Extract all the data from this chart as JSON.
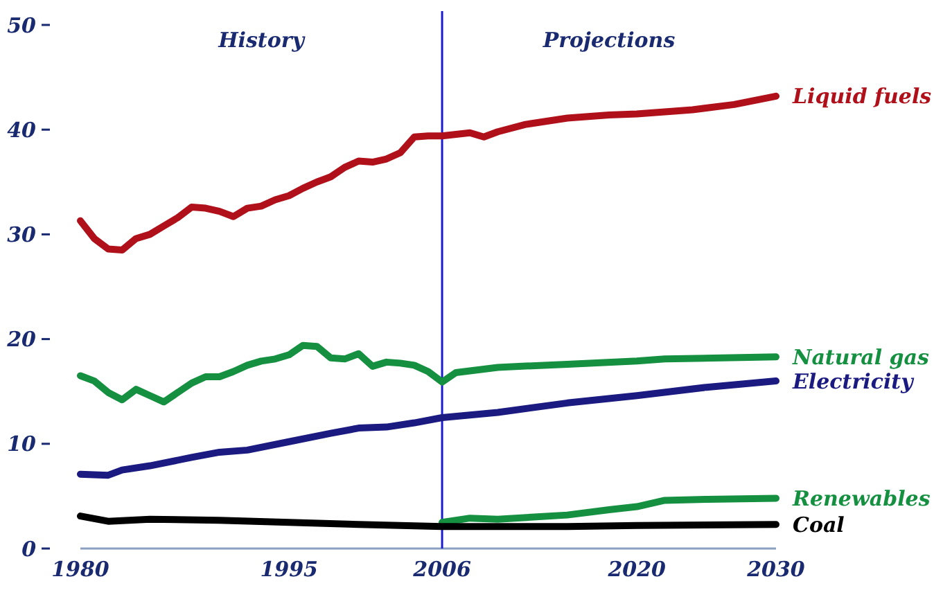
{
  "chart_data": {
    "type": "line",
    "xlim": [
      1980,
      2030
    ],
    "ylim": [
      0,
      50
    ],
    "xticks": [
      1980,
      1995,
      2006,
      2020,
      2030
    ],
    "yticks": [
      0,
      10,
      20,
      30,
      40,
      50
    ],
    "grid": false,
    "marker": "none",
    "line_style": "solid",
    "annotations": [
      "History",
      "Projections"
    ],
    "ref_lines": [
      {
        "axis": "x",
        "value": 2006,
        "color": "#1a1ad0"
      }
    ],
    "series": [
      {
        "name": "Liquid fuels",
        "color": "#b0101a",
        "x": [
          1980,
          1981,
          1982,
          1983,
          1984,
          1985,
          1986,
          1987,
          1988,
          1989,
          1990,
          1991,
          1992,
          1993,
          1994,
          1995,
          1996,
          1997,
          1998,
          1999,
          2000,
          2001,
          2002,
          2003,
          2004,
          2005,
          2006,
          2008,
          2009,
          2010,
          2012,
          2015,
          2018,
          2020,
          2024,
          2027,
          2030
        ],
        "values": [
          31.3,
          29.6,
          28.6,
          28.5,
          29.6,
          30,
          30.8,
          31.6,
          32.6,
          32.5,
          32.2,
          31.7,
          32.5,
          32.7,
          33.3,
          33.7,
          34.4,
          35,
          35.5,
          36.4,
          37,
          36.9,
          37.2,
          37.8,
          39.3,
          39.4,
          39.4,
          39.7,
          39.3,
          39.8,
          40.5,
          41.1,
          41.4,
          41.5,
          41.9,
          42.4,
          43.2
        ]
      },
      {
        "name": "Natural gas",
        "color": "#149040",
        "x": [
          1980,
          1981,
          1982,
          1983,
          1984,
          1985,
          1986,
          1987,
          1988,
          1989,
          1990,
          1991,
          1992,
          1993,
          1994,
          1995,
          1996,
          1997,
          1998,
          1999,
          2000,
          2001,
          2002,
          2003,
          2004,
          2005,
          2006,
          2007,
          2010,
          2015,
          2020,
          2022,
          2030
        ],
        "values": [
          16.5,
          16,
          14.9,
          14.2,
          15.2,
          14.6,
          14,
          14.9,
          15.8,
          16.4,
          16.4,
          16.9,
          17.5,
          17.9,
          18.1,
          18.5,
          19.4,
          19.3,
          18.2,
          18.1,
          18.6,
          17.4,
          17.8,
          17.7,
          17.5,
          16.9,
          15.9,
          16.8,
          17.3,
          17.6,
          17.9,
          18.1,
          18.3
        ]
      },
      {
        "name": "Electricity",
        "color": "#1a1a80",
        "x": [
          1980,
          1982,
          1983,
          1985,
          1988,
          1990,
          1992,
          1995,
          1998,
          2000,
          2002,
          2004,
          2006,
          2010,
          2015,
          2020,
          2025,
          2030
        ],
        "values": [
          7.1,
          7.0,
          7.5,
          7.9,
          8.7,
          9.2,
          9.4,
          10.2,
          11.0,
          11.5,
          11.6,
          12.0,
          12.5,
          13.0,
          13.9,
          14.6,
          15.4,
          16.0
        ]
      },
      {
        "name": "Renewables",
        "color": "#149040",
        "x": [
          2006,
          2008,
          2010,
          2015,
          2018,
          2020,
          2022,
          2025,
          2030
        ],
        "values": [
          2.5,
          2.9,
          2.8,
          3.2,
          3.7,
          4.0,
          4.6,
          4.7,
          4.8
        ]
      },
      {
        "name": "Coal",
        "color": "#000000",
        "x": [
          1980,
          1982,
          1985,
          1990,
          1995,
          2000,
          2006,
          2010,
          2015,
          2020,
          2030
        ],
        "values": [
          3.1,
          2.6,
          2.8,
          2.7,
          2.5,
          2.3,
          2.1,
          2.1,
          2.1,
          2.2,
          2.3
        ]
      }
    ]
  }
}
